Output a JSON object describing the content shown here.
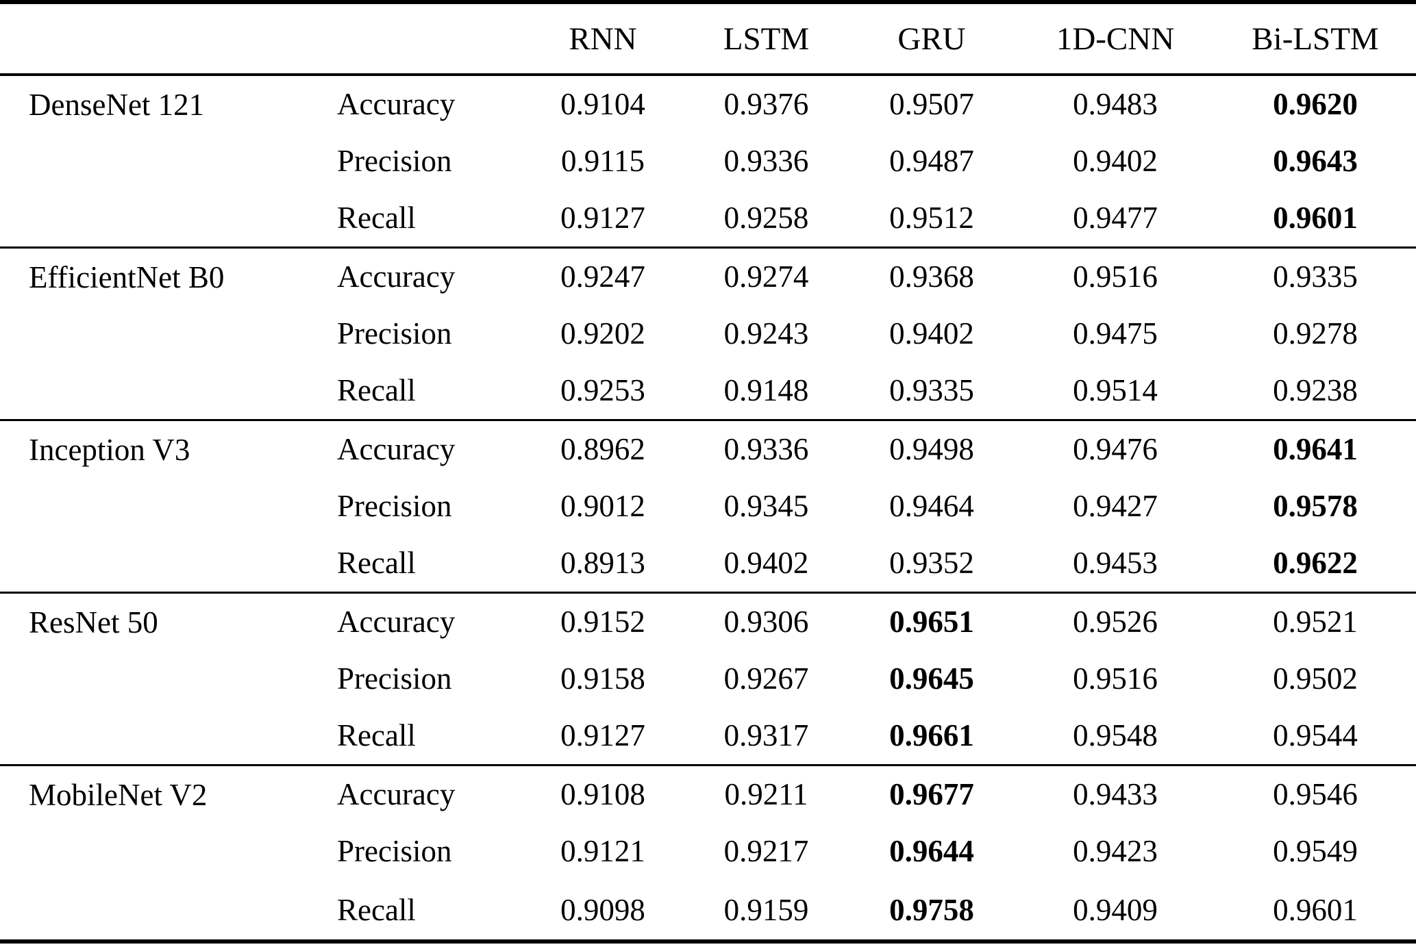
{
  "table": {
    "col_headers": [
      "RNN",
      "LSTM",
      "GRU",
      "1D-CNN",
      "Bi-LSTM"
    ],
    "groups": [
      {
        "model": "DenseNet 121",
        "bold_col": 4,
        "rows": [
          {
            "metric": "Accuracy",
            "values": [
              "0.9104",
              "0.9376",
              "0.9507",
              "0.9483",
              "0.9620"
            ]
          },
          {
            "metric": "Precision",
            "values": [
              "0.9115",
              "0.9336",
              "0.9487",
              "0.9402",
              "0.9643"
            ]
          },
          {
            "metric": "Recall",
            "values": [
              "0.9127",
              "0.9258",
              "0.9512",
              "0.9477",
              "0.9601"
            ]
          }
        ]
      },
      {
        "model": "EfficientNet B0",
        "bold_col": null,
        "rows": [
          {
            "metric": "Accuracy",
            "values": [
              "0.9247",
              "0.9274",
              "0.9368",
              "0.9516",
              "0.9335"
            ]
          },
          {
            "metric": "Precision",
            "values": [
              "0.9202",
              "0.9243",
              "0.9402",
              "0.9475",
              "0.9278"
            ]
          },
          {
            "metric": "Recall",
            "values": [
              "0.9253",
              "0.9148",
              "0.9335",
              "0.9514",
              "0.9238"
            ]
          }
        ]
      },
      {
        "model": "Inception V3",
        "bold_col": 4,
        "rows": [
          {
            "metric": "Accuracy",
            "values": [
              "0.8962",
              "0.9336",
              "0.9498",
              "0.9476",
              "0.9641"
            ]
          },
          {
            "metric": "Precision",
            "values": [
              "0.9012",
              "0.9345",
              "0.9464",
              "0.9427",
              "0.9578"
            ]
          },
          {
            "metric": "Recall",
            "values": [
              "0.8913",
              "0.9402",
              "0.9352",
              "0.9453",
              "0.9622"
            ]
          }
        ]
      },
      {
        "model": "ResNet 50",
        "bold_col": 2,
        "rows": [
          {
            "metric": "Accuracy",
            "values": [
              "0.9152",
              "0.9306",
              "0.9651",
              "0.9526",
              "0.9521"
            ]
          },
          {
            "metric": "Precision",
            "values": [
              "0.9158",
              "0.9267",
              "0.9645",
              "0.9516",
              "0.9502"
            ]
          },
          {
            "metric": "Recall",
            "values": [
              "0.9127",
              "0.9317",
              "0.9661",
              "0.9548",
              "0.9544"
            ]
          }
        ]
      },
      {
        "model": "MobileNet V2",
        "bold_col": 2,
        "rows": [
          {
            "metric": "Accuracy",
            "values": [
              "0.9108",
              "0.9211",
              "0.9677",
              "0.9433",
              "0.9546"
            ]
          },
          {
            "metric": "Precision",
            "values": [
              "0.9121",
              "0.9217",
              "0.9644",
              "0.9423",
              "0.9549"
            ]
          },
          {
            "metric": "Recall",
            "values": [
              "0.9098",
              "0.9159",
              "0.9758",
              "0.9409",
              "0.9601"
            ]
          }
        ]
      }
    ]
  }
}
